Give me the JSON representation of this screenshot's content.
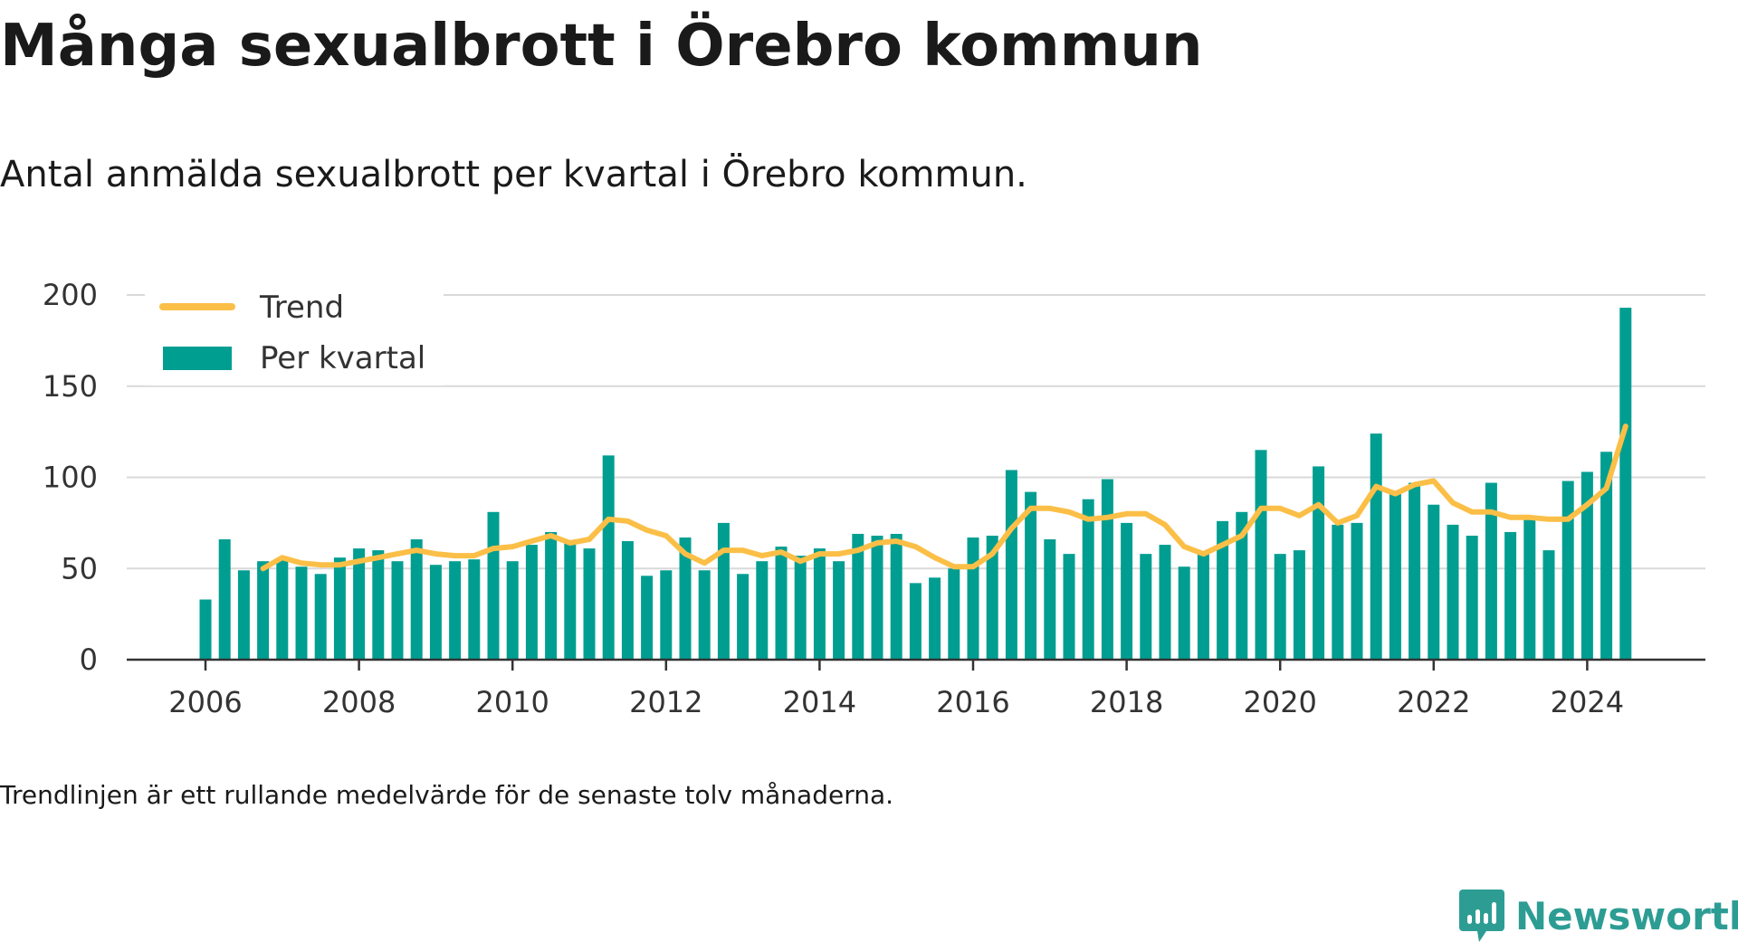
{
  "title": "Många sexualbrott i Örebro kommun",
  "subtitle": "Antal anmälda sexualbrott per kvartal i Örebro kommun.",
  "footnote": "Trendlinjen är ett rullande medelvärde för de senaste tolv månaderna.",
  "brand": {
    "name": "Newsworthy",
    "icon": "newsworthy-logo-icon",
    "color": "#2d9d94"
  },
  "colors": {
    "bar": "#009e91",
    "trend": "#fbbf47",
    "grid": "#d9d9d9",
    "axis": "#333333"
  },
  "chart_data": {
    "type": "bar",
    "title": "",
    "xlabel": "",
    "ylabel": "",
    "ylim": [
      0,
      200
    ],
    "yticks": [
      "0",
      "50",
      "100",
      "150",
      "200"
    ],
    "xticks": [
      "2006",
      "2008",
      "2010",
      "2012",
      "2014",
      "2016",
      "2018",
      "2020",
      "2022",
      "2024"
    ],
    "grid": true,
    "legend_position": "top-left",
    "legend": [
      {
        "label": "Trend",
        "kind": "line"
      },
      {
        "label": "Per kvartal",
        "kind": "bar"
      }
    ],
    "start": {
      "year": 2006,
      "quarter": 1
    },
    "series": [
      {
        "name": "Per kvartal",
        "type": "bar",
        "values": [
          33,
          66,
          49,
          54,
          55,
          51,
          47,
          56,
          61,
          60,
          54,
          66,
          52,
          54,
          55,
          81,
          54,
          63,
          70,
          64,
          61,
          112,
          65,
          46,
          49,
          67,
          49,
          75,
          47,
          54,
          62,
          57,
          61,
          54,
          69,
          68,
          69,
          42,
          45,
          50,
          67,
          68,
          104,
          92,
          66,
          58,
          88,
          99,
          75,
          58,
          63,
          51,
          58,
          76,
          81,
          115,
          58,
          60,
          106,
          74,
          75,
          124,
          91,
          97,
          85,
          74,
          68,
          97,
          70,
          77,
          60,
          98,
          103,
          114,
          193
        ]
      },
      {
        "name": "Trend",
        "type": "line",
        "values": [
          null,
          null,
          null,
          50,
          56,
          53,
          52,
          52,
          54,
          56,
          58,
          60,
          58,
          57,
          57,
          61,
          62,
          65,
          68,
          64,
          66,
          77,
          76,
          71,
          68,
          58,
          53,
          60,
          60,
          57,
          59,
          54,
          58,
          58,
          60,
          64,
          65,
          62,
          56,
          51,
          51,
          58,
          72,
          83,
          83,
          81,
          77,
          78,
          80,
          80,
          74,
          62,
          58,
          63,
          68,
          83,
          83,
          79,
          85,
          75,
          79,
          95,
          91,
          96,
          98,
          86,
          81,
          81,
          78,
          78,
          77,
          77,
          85,
          94,
          128
        ]
      }
    ]
  }
}
